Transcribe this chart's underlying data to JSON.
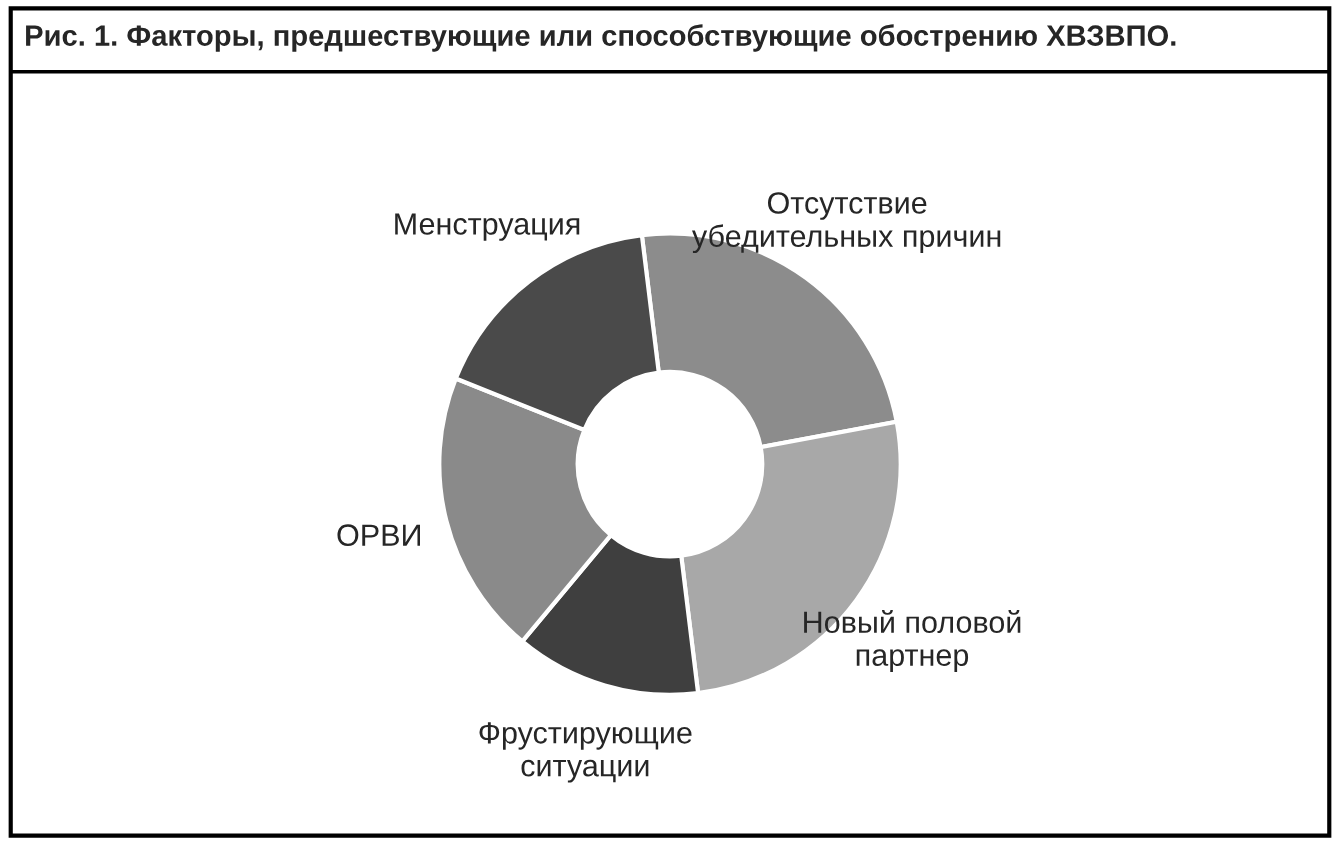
{
  "chart_data": {
    "type": "donut",
    "title": "Рис. 1. Факторы, предшествующие или способствующие обострению ХВЗВПО.",
    "categories": [
      "Отсутствие\nубедительных причин",
      "Новый половой\nпартнер",
      "Фрустирующие\nситуации",
      "ОРВИ",
      "Менструация"
    ],
    "values": [
      24,
      26,
      13,
      20,
      17
    ],
    "colors": [
      "#8c8c8c",
      "#a8a8a8",
      "#3f3f3f",
      "#8a8a8a",
      "#4a4a4a"
    ],
    "legend": false
  }
}
